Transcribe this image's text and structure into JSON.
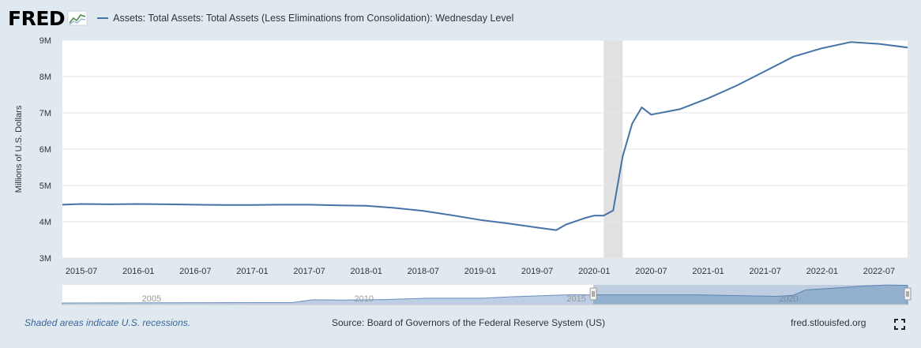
{
  "header": {
    "logo_text": "FRED",
    "logo_icon": "fred-line-chart-icon",
    "legend_label": "Assets: Total Assets: Total Assets (Less Eliminations from Consolidation): Wednesday Level"
  },
  "chart_data": {
    "type": "line",
    "ylabel": "Millions of U.S. Dollars",
    "ylim": [
      3,
      9
    ],
    "yticks": [
      {
        "value": 3,
        "label": "3M"
      },
      {
        "value": 4,
        "label": "4M"
      },
      {
        "value": 5,
        "label": "5M"
      },
      {
        "value": 6,
        "label": "6M"
      },
      {
        "value": 7,
        "label": "7M"
      },
      {
        "value": 8,
        "label": "8M"
      },
      {
        "value": 9,
        "label": "9M"
      }
    ],
    "xlim": [
      "2015-05",
      "2022-10"
    ],
    "xticks": [
      "2015-07",
      "2016-01",
      "2016-07",
      "2017-01",
      "2017-07",
      "2018-01",
      "2018-07",
      "2019-01",
      "2019-07",
      "2020-01",
      "2020-07",
      "2021-01",
      "2021-07",
      "2022-01",
      "2022-07"
    ],
    "recession": {
      "start": "2020-02",
      "end": "2020-04"
    },
    "grid": true,
    "series": [
      {
        "color": "#4572a7",
        "points": [
          [
            "2015-05",
            4.47
          ],
          [
            "2015-07",
            4.49
          ],
          [
            "2015-10",
            4.48
          ],
          [
            "2016-01",
            4.49
          ],
          [
            "2016-04",
            4.48
          ],
          [
            "2016-07",
            4.47
          ],
          [
            "2016-10",
            4.46
          ],
          [
            "2017-01",
            4.46
          ],
          [
            "2017-04",
            4.47
          ],
          [
            "2017-07",
            4.47
          ],
          [
            "2017-10",
            4.45
          ],
          [
            "2018-01",
            4.44
          ],
          [
            "2018-04",
            4.38
          ],
          [
            "2018-07",
            4.3
          ],
          [
            "2018-10",
            4.18
          ],
          [
            "2019-01",
            4.05
          ],
          [
            "2019-04",
            3.95
          ],
          [
            "2019-07",
            3.84
          ],
          [
            "2019-09",
            3.77
          ],
          [
            "2019-10",
            3.92
          ],
          [
            "2019-12",
            4.1
          ],
          [
            "2020-01",
            4.17
          ],
          [
            "2020-02",
            4.17
          ],
          [
            "2020-03",
            4.31
          ],
          [
            "2020-04",
            5.8
          ],
          [
            "2020-05",
            6.7
          ],
          [
            "2020-06",
            7.15
          ],
          [
            "2020-07",
            6.95
          ],
          [
            "2020-10",
            7.1
          ],
          [
            "2021-01",
            7.4
          ],
          [
            "2021-04",
            7.75
          ],
          [
            "2021-07",
            8.15
          ],
          [
            "2021-10",
            8.55
          ],
          [
            "2022-01",
            8.78
          ],
          [
            "2022-04",
            8.95
          ],
          [
            "2022-07",
            8.9
          ],
          [
            "2022-10",
            8.8
          ]
        ]
      }
    ]
  },
  "navigator": {
    "labels": [
      {
        "value": "2005",
        "year": 2005
      },
      {
        "value": "2010",
        "year": 2010
      },
      {
        "value": "2015",
        "year": 2015
      },
      {
        "value": "2020",
        "year": 2020
      }
    ],
    "range_start_year": 2002.9,
    "range_end_year": 2022.8,
    "selection_start_year": 2015.4,
    "selection_end_year": 2022.8,
    "series": [
      [
        2002.9,
        0.72
      ],
      [
        2007.5,
        0.89
      ],
      [
        2008.3,
        0.89
      ],
      [
        2008.8,
        2.2
      ],
      [
        2009.5,
        2.1
      ],
      [
        2010.5,
        2.3
      ],
      [
        2011.5,
        2.9
      ],
      [
        2012.8,
        2.9
      ],
      [
        2013.5,
        3.6
      ],
      [
        2014.8,
        4.48
      ],
      [
        2017.8,
        4.45
      ],
      [
        2019.7,
        3.78
      ],
      [
        2020.1,
        4.2
      ],
      [
        2020.4,
        6.7
      ],
      [
        2021.0,
        7.4
      ],
      [
        2021.8,
        8.5
      ],
      [
        2022.3,
        8.95
      ],
      [
        2022.8,
        8.8
      ]
    ]
  },
  "footer": {
    "recession_note": "Shaded areas indicate U.S. recessions.",
    "source": "Source: Board of Governors of the Federal Reserve System (US)",
    "site": "fred.stlouisfed.org"
  }
}
